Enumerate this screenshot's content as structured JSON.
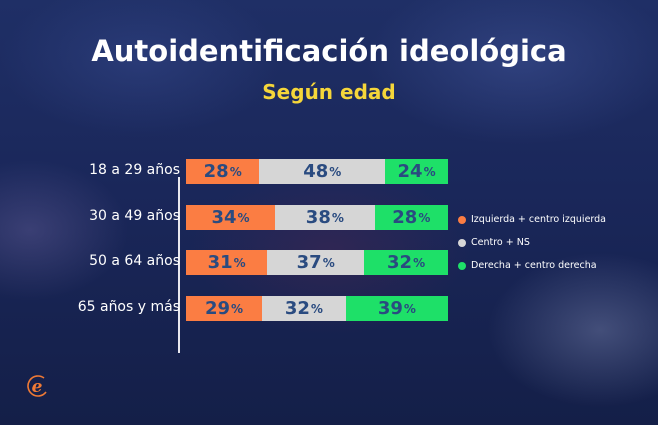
{
  "header": {
    "title": "Autoidentificación ideológica",
    "subtitle": "Según edad"
  },
  "colors": {
    "left": "#fb7d43",
    "center": "#d6d6d6",
    "right": "#1ee068",
    "value_text": "#2a4b80",
    "subtitle": "#f5d63a"
  },
  "legend": [
    {
      "label": "Izquierda + centro izquierda",
      "color": "#fb7d43"
    },
    {
      "label": "Centro + NS",
      "color": "#d6d6d6"
    },
    {
      "label": "Derecha + centro derecha",
      "color": "#1ee068"
    }
  ],
  "rows": [
    {
      "label": "18 a 29 años",
      "values": [
        "28",
        "48",
        "24"
      ]
    },
    {
      "label": "30 a 49 años",
      "values": [
        "34",
        "38",
        "28"
      ]
    },
    {
      "label": "50 a 64 años",
      "values": [
        "31",
        "37",
        "32"
      ]
    },
    {
      "label": "65 años y más",
      "values": [
        "29",
        "32",
        "39"
      ]
    }
  ],
  "pct_sign": "%",
  "chart_data": {
    "type": "bar",
    "orientation": "horizontal",
    "stacked": true,
    "title": "Autoidentificación ideológica",
    "subtitle": "Según edad",
    "categories": [
      "18 a 29 años",
      "30 a 49 años",
      "50 a 64 años",
      "65 años y más"
    ],
    "series": [
      {
        "name": "Izquierda + centro izquierda",
        "color": "#fb7d43",
        "values": [
          28,
          34,
          31,
          29
        ]
      },
      {
        "name": "Centro + NS",
        "color": "#d6d6d6",
        "values": [
          48,
          38,
          37,
          32
        ]
      },
      {
        "name": "Derecha + centro derecha",
        "color": "#1ee068",
        "values": [
          24,
          28,
          32,
          39
        ]
      }
    ],
    "unit": "%",
    "xlim": [
      0,
      100
    ],
    "grid": false,
    "legend_position": "right",
    "data_labels": true
  }
}
